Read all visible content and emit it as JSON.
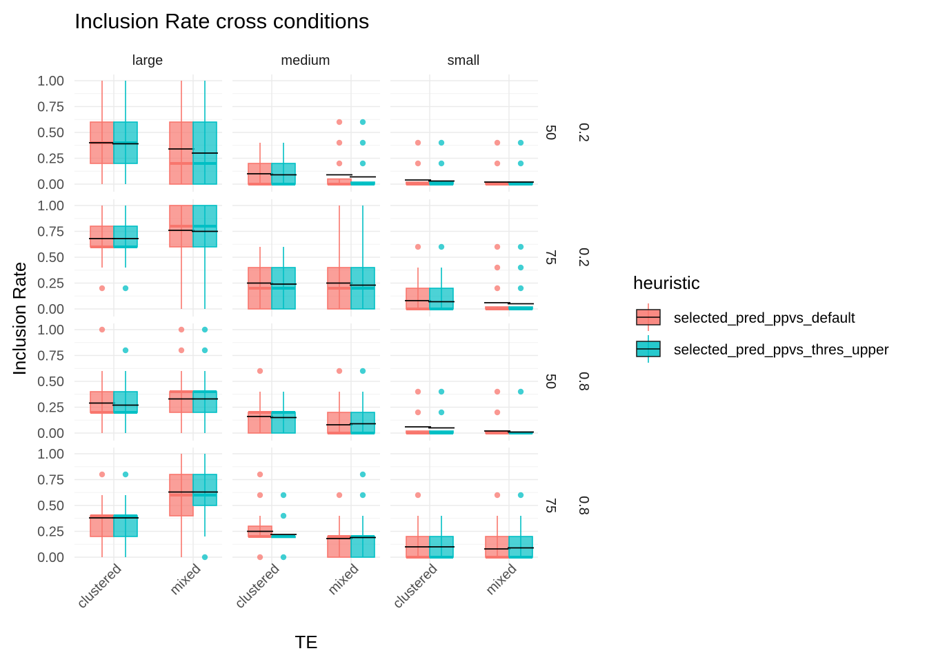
{
  "chart_data": {
    "type": "boxplot",
    "title": "Inclusion Rate cross conditions",
    "xlabel": "TE",
    "ylabel": "Inclusion Rate",
    "ylim": [
      0,
      1
    ],
    "y_ticks": [
      "0.00",
      "0.25",
      "0.50",
      "0.75",
      "1.00"
    ],
    "y_tick_values": [
      0,
      0.25,
      0.5,
      0.75,
      1
    ],
    "categories": [
      "clustered",
      "mixed"
    ],
    "columns": [
      "large",
      "medium",
      "small"
    ],
    "rows": [
      {
        "n": "50",
        "rho": "0.2"
      },
      {
        "n": "75",
        "rho": "0.2"
      },
      {
        "n": "50",
        "rho": "0.8"
      },
      {
        "n": "75",
        "rho": "0.8"
      }
    ],
    "grid": true,
    "legend": {
      "title": "heuristic",
      "position": "right",
      "entries": [
        {
          "label": "selected_pred_ppvs_default",
          "color": "#F8766D"
        },
        {
          "label": "selected_pred_ppvs_thres_upper",
          "color": "#00BFC4"
        }
      ]
    },
    "mean_line_color": "#000000",
    "panels": [
      {
        "row": 0,
        "col": 0,
        "boxes": [
          {
            "cat": "clustered",
            "series": 0,
            "q1": 0.2,
            "median": 0.4,
            "q3": 0.6,
            "lo": 0,
            "hi": 1,
            "mean": 0.4,
            "outliers": []
          },
          {
            "cat": "clustered",
            "series": 1,
            "q1": 0.2,
            "median": 0.4,
            "q3": 0.6,
            "lo": 0,
            "hi": 1,
            "mean": 0.39,
            "outliers": []
          },
          {
            "cat": "mixed",
            "series": 0,
            "q1": 0,
            "median": 0.2,
            "q3": 0.6,
            "lo": 0,
            "hi": 1,
            "mean": 0.34,
            "outliers": []
          },
          {
            "cat": "mixed",
            "series": 1,
            "q1": 0,
            "median": 0.2,
            "q3": 0.6,
            "lo": 0,
            "hi": 1,
            "mean": 0.3,
            "outliers": []
          }
        ]
      },
      {
        "row": 0,
        "col": 1,
        "boxes": [
          {
            "cat": "clustered",
            "series": 0,
            "q1": 0,
            "median": 0,
            "q3": 0.2,
            "lo": 0,
            "hi": 0.4,
            "mean": 0.1,
            "outliers": []
          },
          {
            "cat": "clustered",
            "series": 1,
            "q1": 0,
            "median": 0,
            "q3": 0.2,
            "lo": 0,
            "hi": 0.4,
            "mean": 0.09,
            "outliers": []
          },
          {
            "cat": "mixed",
            "series": 0,
            "q1": 0,
            "median": 0,
            "q3": 0.05,
            "lo": 0,
            "hi": 0.05,
            "mean": 0.09,
            "outliers": [
              0.2,
              0.4,
              0.6
            ]
          },
          {
            "cat": "mixed",
            "series": 1,
            "q1": 0,
            "median": 0,
            "q3": 0.02,
            "lo": 0,
            "hi": 0.02,
            "mean": 0.07,
            "outliers": [
              0.2,
              0.4,
              0.6
            ]
          }
        ]
      },
      {
        "row": 0,
        "col": 2,
        "boxes": [
          {
            "cat": "clustered",
            "series": 0,
            "q1": 0,
            "median": 0,
            "q3": 0.02,
            "lo": 0,
            "hi": 0.02,
            "mean": 0.04,
            "outliers": [
              0.2,
              0.4
            ]
          },
          {
            "cat": "clustered",
            "series": 1,
            "q1": 0,
            "median": 0,
            "q3": 0.02,
            "lo": 0,
            "hi": 0.02,
            "mean": 0.03,
            "outliers": [
              0.2,
              0.4
            ]
          },
          {
            "cat": "mixed",
            "series": 0,
            "q1": 0,
            "median": 0,
            "q3": 0.02,
            "lo": 0,
            "hi": 0.02,
            "mean": 0.02,
            "outliers": [
              0.2,
              0.4
            ]
          },
          {
            "cat": "mixed",
            "series": 1,
            "q1": 0,
            "median": 0,
            "q3": 0.02,
            "lo": 0,
            "hi": 0.02,
            "mean": 0.02,
            "outliers": [
              0.2,
              0.4
            ]
          }
        ]
      },
      {
        "row": 1,
        "col": 0,
        "boxes": [
          {
            "cat": "clustered",
            "series": 0,
            "q1": 0.6,
            "median": 0.6,
            "q3": 0.8,
            "lo": 0.4,
            "hi": 1,
            "mean": 0.68,
            "outliers": [
              0.2
            ]
          },
          {
            "cat": "clustered",
            "series": 1,
            "q1": 0.6,
            "median": 0.6,
            "q3": 0.8,
            "lo": 0.4,
            "hi": 1,
            "mean": 0.68,
            "outliers": [
              0.2
            ]
          },
          {
            "cat": "mixed",
            "series": 0,
            "q1": 0.6,
            "median": 0.8,
            "q3": 1,
            "lo": 0,
            "hi": 1,
            "mean": 0.76,
            "outliers": []
          },
          {
            "cat": "mixed",
            "series": 1,
            "q1": 0.6,
            "median": 0.8,
            "q3": 1,
            "lo": 0,
            "hi": 1,
            "mean": 0.75,
            "outliers": []
          }
        ]
      },
      {
        "row": 1,
        "col": 1,
        "boxes": [
          {
            "cat": "clustered",
            "series": 0,
            "q1": 0,
            "median": 0.2,
            "q3": 0.4,
            "lo": 0,
            "hi": 0.6,
            "mean": 0.25,
            "outliers": []
          },
          {
            "cat": "clustered",
            "series": 1,
            "q1": 0,
            "median": 0.2,
            "q3": 0.4,
            "lo": 0,
            "hi": 0.6,
            "mean": 0.24,
            "outliers": []
          },
          {
            "cat": "mixed",
            "series": 0,
            "q1": 0,
            "median": 0.2,
            "q3": 0.4,
            "lo": 0,
            "hi": 1,
            "mean": 0.25,
            "outliers": []
          },
          {
            "cat": "mixed",
            "series": 1,
            "q1": 0,
            "median": 0.2,
            "q3": 0.4,
            "lo": 0,
            "hi": 1,
            "mean": 0.23,
            "outliers": []
          }
        ]
      },
      {
        "row": 1,
        "col": 2,
        "boxes": [
          {
            "cat": "clustered",
            "series": 0,
            "q1": 0,
            "median": 0,
            "q3": 0.2,
            "lo": 0,
            "hi": 0.4,
            "mean": 0.08,
            "outliers": [
              0.6
            ]
          },
          {
            "cat": "clustered",
            "series": 1,
            "q1": 0,
            "median": 0,
            "q3": 0.2,
            "lo": 0,
            "hi": 0.4,
            "mean": 0.07,
            "outliers": [
              0.6
            ]
          },
          {
            "cat": "mixed",
            "series": 0,
            "q1": 0,
            "median": 0,
            "q3": 0.02,
            "lo": 0,
            "hi": 0.02,
            "mean": 0.06,
            "outliers": [
              0.2,
              0.4,
              0.6
            ]
          },
          {
            "cat": "mixed",
            "series": 1,
            "q1": 0,
            "median": 0,
            "q3": 0.02,
            "lo": 0,
            "hi": 0.02,
            "mean": 0.05,
            "outliers": [
              0.2,
              0.4,
              0.6
            ]
          }
        ]
      },
      {
        "row": 2,
        "col": 0,
        "boxes": [
          {
            "cat": "clustered",
            "series": 0,
            "q1": 0.2,
            "median": 0.2,
            "q3": 0.4,
            "lo": 0,
            "hi": 0.6,
            "mean": 0.29,
            "outliers": [
              1
            ]
          },
          {
            "cat": "clustered",
            "series": 1,
            "q1": 0.2,
            "median": 0.2,
            "q3": 0.4,
            "lo": 0,
            "hi": 0.6,
            "mean": 0.27,
            "outliers": [
              0.8
            ]
          },
          {
            "cat": "mixed",
            "series": 0,
            "q1": 0.2,
            "median": 0.4,
            "q3": 0.4,
            "lo": 0,
            "hi": 0.6,
            "mean": 0.33,
            "outliers": [
              0.8,
              1
            ]
          },
          {
            "cat": "mixed",
            "series": 1,
            "q1": 0.2,
            "median": 0.4,
            "q3": 0.4,
            "lo": 0,
            "hi": 0.6,
            "mean": 0.33,
            "outliers": [
              0.8,
              1
            ]
          }
        ]
      },
      {
        "row": 2,
        "col": 1,
        "boxes": [
          {
            "cat": "clustered",
            "series": 0,
            "q1": 0,
            "median": 0.2,
            "q3": 0.2,
            "lo": 0,
            "hi": 0.4,
            "mean": 0.16,
            "outliers": [
              0.6
            ]
          },
          {
            "cat": "clustered",
            "series": 1,
            "q1": 0,
            "median": 0.2,
            "q3": 0.2,
            "lo": 0,
            "hi": 0.4,
            "mean": 0.15,
            "outliers": []
          },
          {
            "cat": "mixed",
            "series": 0,
            "q1": 0,
            "median": 0,
            "q3": 0.2,
            "lo": 0,
            "hi": 0.4,
            "mean": 0.08,
            "outliers": [
              0.6
            ]
          },
          {
            "cat": "mixed",
            "series": 1,
            "q1": 0,
            "median": 0,
            "q3": 0.2,
            "lo": 0,
            "hi": 0.4,
            "mean": 0.09,
            "outliers": [
              0.6
            ]
          }
        ]
      },
      {
        "row": 2,
        "col": 2,
        "boxes": [
          {
            "cat": "clustered",
            "series": 0,
            "q1": 0,
            "median": 0,
            "q3": 0.02,
            "lo": 0,
            "hi": 0.02,
            "mean": 0.06,
            "outliers": [
              0.2,
              0.4
            ]
          },
          {
            "cat": "clustered",
            "series": 1,
            "q1": 0,
            "median": 0,
            "q3": 0.02,
            "lo": 0,
            "hi": 0.02,
            "mean": 0.05,
            "outliers": [
              0.2,
              0.4
            ]
          },
          {
            "cat": "mixed",
            "series": 0,
            "q1": 0,
            "median": 0,
            "q3": 0.02,
            "lo": 0,
            "hi": 0.02,
            "mean": 0.02,
            "outliers": [
              0.2,
              0.4
            ]
          },
          {
            "cat": "mixed",
            "series": 1,
            "q1": 0,
            "median": 0,
            "q3": 0.01,
            "lo": 0,
            "hi": 0.01,
            "mean": 0.01,
            "outliers": [
              0.4
            ]
          }
        ]
      },
      {
        "row": 3,
        "col": 0,
        "boxes": [
          {
            "cat": "clustered",
            "series": 0,
            "q1": 0.2,
            "median": 0.4,
            "q3": 0.4,
            "lo": 0,
            "hi": 0.6,
            "mean": 0.38,
            "outliers": [
              0.8
            ]
          },
          {
            "cat": "clustered",
            "series": 1,
            "q1": 0.2,
            "median": 0.4,
            "q3": 0.4,
            "lo": 0,
            "hi": 0.6,
            "mean": 0.38,
            "outliers": [
              0.8
            ]
          },
          {
            "cat": "mixed",
            "series": 0,
            "q1": 0.4,
            "median": 0.6,
            "q3": 0.8,
            "lo": 0,
            "hi": 1,
            "mean": 0.63,
            "outliers": []
          },
          {
            "cat": "mixed",
            "series": 1,
            "q1": 0.5,
            "median": 0.6,
            "q3": 0.8,
            "lo": 0.2,
            "hi": 1,
            "mean": 0.63,
            "outliers": [
              0
            ]
          }
        ]
      },
      {
        "row": 3,
        "col": 1,
        "boxes": [
          {
            "cat": "clustered",
            "series": 0,
            "q1": 0.2,
            "median": 0.2,
            "q3": 0.3,
            "lo": 0.2,
            "hi": 0.4,
            "mean": 0.25,
            "outliers": [
              0,
              0.6,
              0.8
            ]
          },
          {
            "cat": "clustered",
            "series": 1,
            "q1": 0.2,
            "median": 0.2,
            "q3": 0.2,
            "lo": 0.2,
            "hi": 0.2,
            "mean": 0.22,
            "outliers": [
              0,
              0.4,
              0.6
            ]
          },
          {
            "cat": "mixed",
            "series": 0,
            "q1": 0,
            "median": 0.2,
            "q3": 0.2,
            "lo": 0,
            "hi": 0.4,
            "mean": 0.18,
            "outliers": [
              0.6
            ]
          },
          {
            "cat": "mixed",
            "series": 1,
            "q1": 0,
            "median": 0.2,
            "q3": 0.2,
            "lo": 0,
            "hi": 0.4,
            "mean": 0.19,
            "outliers": [
              0.6,
              0.8
            ]
          }
        ]
      },
      {
        "row": 3,
        "col": 2,
        "boxes": [
          {
            "cat": "clustered",
            "series": 0,
            "q1": 0,
            "median": 0,
            "q3": 0.2,
            "lo": 0,
            "hi": 0.4,
            "mean": 0.1,
            "outliers": [
              0.6
            ]
          },
          {
            "cat": "clustered",
            "series": 1,
            "q1": 0,
            "median": 0,
            "q3": 0.2,
            "lo": 0,
            "hi": 0.4,
            "mean": 0.1,
            "outliers": []
          },
          {
            "cat": "mixed",
            "series": 0,
            "q1": 0,
            "median": 0,
            "q3": 0.2,
            "lo": 0,
            "hi": 0.4,
            "mean": 0.08,
            "outliers": [
              0.6
            ]
          },
          {
            "cat": "mixed",
            "series": 1,
            "q1": 0,
            "median": 0,
            "q3": 0.2,
            "lo": 0,
            "hi": 0.4,
            "mean": 0.09,
            "outliers": [
              0.6
            ]
          }
        ]
      }
    ]
  }
}
